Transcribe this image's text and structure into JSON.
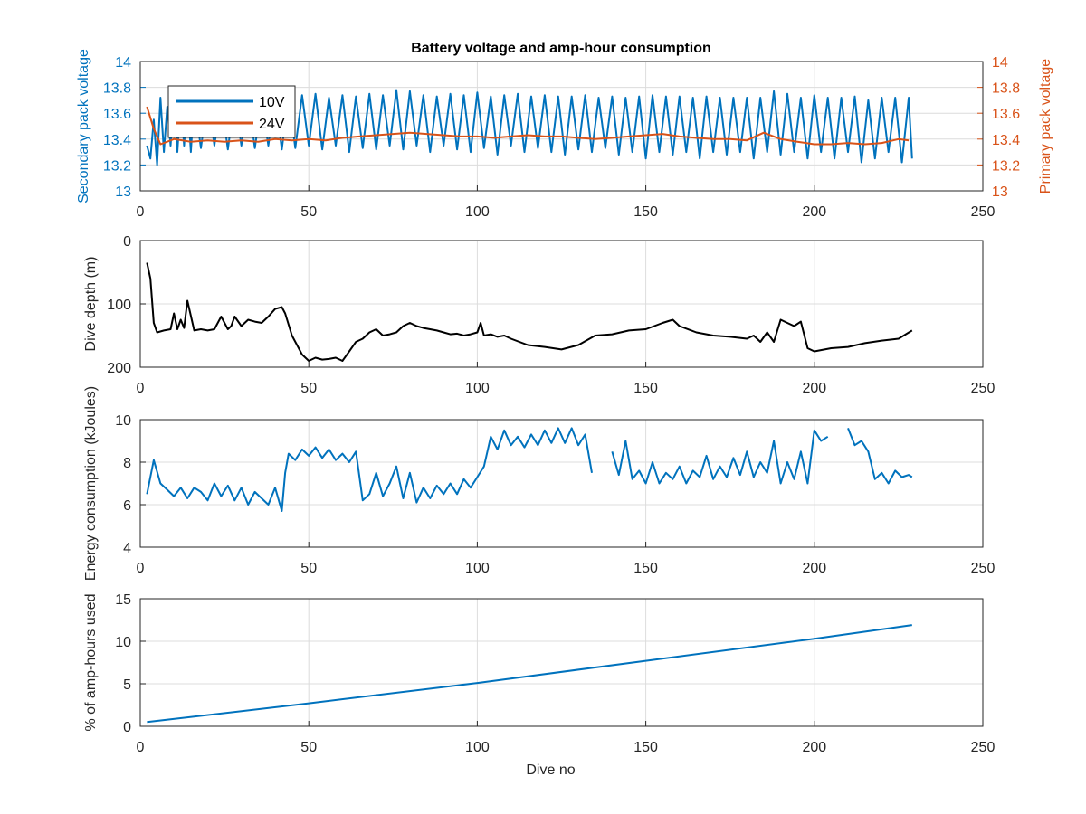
{
  "figure": {
    "title": "Battery voltage and amp-hour consumption"
  },
  "colors": {
    "series_10v": "#0072bd",
    "series_24v": "#d95319",
    "black": "#000000",
    "blue": "#0072bd"
  },
  "chart_data": [
    {
      "id": "voltage",
      "type": "line",
      "title": "Battery voltage and amp-hour consumption",
      "xlabel": "",
      "ylabel": "Secondary pack voltage",
      "ylabel_right": "Primary pack voltage",
      "xlim": [
        0,
        250
      ],
      "ylim": [
        13,
        14
      ],
      "ylim_right": [
        13,
        14
      ],
      "x_ticks": [
        "0",
        "50",
        "100",
        "150",
        "200",
        "250"
      ],
      "y_ticks": [
        "13",
        "13.2",
        "13.4",
        "13.6",
        "13.8",
        "14"
      ],
      "y_ticks_right": [
        "13",
        "13.2",
        "13.4",
        "13.6",
        "13.8",
        "14"
      ],
      "grid": true,
      "legend_position": "top-left",
      "series": [
        {
          "name": "10V",
          "color": "#0072bd",
          "axis": "left",
          "x": [
            2,
            3,
            4,
            5,
            6,
            7,
            8,
            9,
            10,
            11,
            12,
            13,
            14,
            15,
            16,
            18,
            20,
            22,
            24,
            26,
            28,
            30,
            32,
            34,
            36,
            38,
            40,
            42,
            44,
            46,
            48,
            50,
            52,
            54,
            56,
            58,
            60,
            62,
            64,
            66,
            68,
            70,
            72,
            74,
            76,
            78,
            80,
            82,
            84,
            86,
            88,
            90,
            92,
            94,
            96,
            98,
            100,
            102,
            104,
            106,
            108,
            110,
            112,
            114,
            116,
            118,
            120,
            122,
            124,
            126,
            128,
            130,
            132,
            134,
            136,
            138,
            140,
            142,
            144,
            146,
            148,
            150,
            152,
            154,
            156,
            158,
            160,
            162,
            164,
            166,
            168,
            170,
            172,
            174,
            176,
            178,
            180,
            182,
            184,
            186,
            188,
            190,
            192,
            194,
            196,
            198,
            200,
            202,
            204,
            206,
            208,
            210,
            212,
            214,
            216,
            218,
            220,
            222,
            224,
            226,
            228,
            229
          ],
          "values": [
            13.35,
            13.25,
            13.55,
            13.2,
            13.72,
            13.3,
            13.65,
            13.35,
            13.72,
            13.3,
            13.7,
            13.35,
            13.72,
            13.3,
            13.72,
            13.33,
            13.72,
            13.35,
            13.7,
            13.32,
            13.72,
            13.35,
            13.72,
            13.33,
            13.7,
            13.35,
            13.72,
            13.32,
            13.73,
            13.33,
            13.74,
            13.35,
            13.75,
            13.32,
            13.72,
            13.35,
            13.74,
            13.3,
            13.73,
            13.33,
            13.75,
            13.32,
            13.74,
            13.35,
            13.78,
            13.32,
            13.77,
            13.35,
            13.74,
            13.3,
            13.73,
            13.35,
            13.75,
            13.32,
            13.74,
            13.3,
            13.76,
            13.33,
            13.73,
            13.28,
            13.74,
            13.35,
            13.75,
            13.3,
            13.73,
            13.33,
            13.74,
            13.3,
            13.73,
            13.28,
            13.73,
            13.32,
            13.74,
            13.3,
            13.72,
            13.33,
            13.73,
            13.28,
            13.72,
            13.3,
            13.73,
            13.25,
            13.74,
            13.3,
            13.73,
            13.28,
            13.73,
            13.3,
            13.72,
            13.25,
            13.73,
            13.3,
            13.72,
            13.28,
            13.72,
            13.3,
            13.72,
            13.25,
            13.72,
            13.3,
            13.77,
            13.28,
            13.75,
            13.3,
            13.72,
            13.25,
            13.74,
            13.3,
            13.72,
            13.25,
            13.72,
            13.3,
            13.73,
            13.22,
            13.7,
            13.25,
            13.72,
            13.3,
            13.72,
            13.22,
            13.72,
            13.25
          ]
        },
        {
          "name": "24V",
          "color": "#d95319",
          "axis": "right",
          "x": [
            2,
            4,
            6,
            8,
            10,
            15,
            20,
            25,
            30,
            35,
            40,
            45,
            50,
            55,
            60,
            65,
            70,
            75,
            80,
            85,
            90,
            95,
            100,
            105,
            110,
            115,
            120,
            125,
            130,
            135,
            140,
            145,
            150,
            155,
            160,
            165,
            170,
            175,
            180,
            185,
            190,
            195,
            200,
            205,
            210,
            215,
            220,
            225,
            228
          ],
          "values": [
            13.65,
            13.48,
            13.36,
            13.38,
            13.4,
            13.38,
            13.39,
            13.38,
            13.39,
            13.38,
            13.4,
            13.39,
            13.4,
            13.39,
            13.41,
            13.42,
            13.43,
            13.44,
            13.45,
            13.44,
            13.43,
            13.42,
            13.42,
            13.41,
            13.42,
            13.43,
            13.42,
            13.42,
            13.41,
            13.4,
            13.41,
            13.42,
            13.43,
            13.44,
            13.42,
            13.41,
            13.4,
            13.4,
            13.39,
            13.45,
            13.4,
            13.38,
            13.36,
            13.36,
            13.37,
            13.36,
            13.37,
            13.4,
            13.39
          ]
        }
      ]
    },
    {
      "id": "depth",
      "type": "line",
      "xlabel": "",
      "ylabel": "Dive depth (m)",
      "xlim": [
        0,
        250
      ],
      "ylim": [
        200,
        0
      ],
      "y_reversed": true,
      "x_ticks": [
        "0",
        "50",
        "100",
        "150",
        "200",
        "250"
      ],
      "y_ticks": [
        "0",
        "100",
        "200"
      ],
      "grid": true,
      "series": [
        {
          "color": "#000000",
          "x": [
            2,
            3,
            4,
            5,
            7,
            9,
            10,
            11,
            12,
            13,
            14,
            16,
            18,
            20,
            22,
            24,
            26,
            27,
            28,
            30,
            32,
            34,
            36,
            38,
            40,
            42,
            43,
            45,
            48,
            50,
            52,
            54,
            56,
            58,
            60,
            62,
            64,
            66,
            68,
            70,
            72,
            74,
            76,
            78,
            80,
            82,
            84,
            86,
            88,
            90,
            92,
            94,
            96,
            98,
            100,
            101,
            102,
            104,
            106,
            108,
            110,
            115,
            120,
            125,
            130,
            135,
            140,
            145,
            150,
            155,
            158,
            160,
            165,
            170,
            175,
            180,
            182,
            184,
            186,
            188,
            190,
            192,
            194,
            196,
            198,
            200,
            205,
            210,
            215,
            220,
            225,
            229
          ],
          "values": [
            35,
            60,
            130,
            145,
            142,
            140,
            115,
            140,
            125,
            138,
            95,
            142,
            140,
            142,
            140,
            120,
            140,
            135,
            120,
            135,
            125,
            128,
            130,
            120,
            108,
            105,
            115,
            150,
            180,
            190,
            185,
            188,
            187,
            185,
            190,
            175,
            160,
            155,
            145,
            140,
            150,
            148,
            145,
            135,
            130,
            135,
            138,
            140,
            142,
            145,
            148,
            147,
            150,
            148,
            145,
            130,
            150,
            148,
            152,
            150,
            155,
            165,
            168,
            172,
            165,
            150,
            148,
            142,
            140,
            130,
            125,
            135,
            145,
            150,
            152,
            155,
            150,
            160,
            145,
            160,
            125,
            130,
            135,
            128,
            170,
            175,
            170,
            168,
            162,
            158,
            155,
            142
          ]
        }
      ]
    },
    {
      "id": "energy",
      "type": "line",
      "xlabel": "",
      "ylabel": "Energy consumption (kJoules)",
      "xlim": [
        0,
        250
      ],
      "ylim": [
        4,
        10
      ],
      "x_ticks": [
        "0",
        "50",
        "100",
        "150",
        "200",
        "250"
      ],
      "y_ticks": [
        "4",
        "6",
        "8",
        "10"
      ],
      "grid": true,
      "series": [
        {
          "color": "#0072bd",
          "x": [
            2,
            4,
            6,
            8,
            10,
            12,
            14,
            16,
            18,
            20,
            22,
            24,
            26,
            28,
            30,
            32,
            34,
            36,
            38,
            40,
            42,
            43,
            44,
            46,
            48,
            50,
            52,
            54,
            56,
            58,
            60,
            62,
            64,
            66,
            68,
            70,
            72,
            74,
            76,
            78,
            80,
            82,
            84,
            86,
            88,
            90,
            92,
            94,
            96,
            98,
            100,
            102,
            104,
            106,
            108,
            110,
            112,
            114,
            116,
            118,
            120,
            122,
            124,
            126,
            128,
            130,
            132,
            134
          ],
          "values": [
            6.5,
            8.1,
            7.0,
            6.7,
            6.4,
            6.8,
            6.3,
            6.8,
            6.6,
            6.2,
            7.0,
            6.4,
            6.9,
            6.2,
            6.8,
            6.0,
            6.6,
            6.3,
            6.0,
            6.8,
            5.7,
            7.5,
            8.4,
            8.1,
            8.6,
            8.3,
            8.7,
            8.2,
            8.6,
            8.1,
            8.4,
            8.0,
            8.5,
            6.2,
            6.5,
            7.5,
            6.4,
            7.0,
            7.8,
            6.3,
            7.5,
            6.1,
            6.8,
            6.3,
            6.9,
            6.5,
            7.0,
            6.5,
            7.2,
            6.8,
            7.3,
            7.8,
            9.2,
            8.6,
            9.5,
            8.8,
            9.2,
            8.7,
            9.3,
            8.8,
            9.5,
            8.9,
            9.6,
            8.9,
            9.6,
            8.8,
            9.3,
            7.5
          ]
        },
        {
          "color": "#0072bd",
          "x": [
            140,
            142,
            144,
            146,
            148,
            150,
            152,
            154,
            156,
            158,
            160,
            162,
            164,
            166,
            168,
            170,
            172,
            174,
            176,
            178,
            180,
            182,
            184,
            186,
            188,
            190,
            192,
            194,
            196,
            198,
            200,
            202,
            204
          ],
          "values": [
            8.5,
            7.4,
            9.0,
            7.2,
            7.6,
            7.0,
            8.0,
            7.0,
            7.5,
            7.2,
            7.8,
            7.0,
            7.6,
            7.3,
            8.3,
            7.2,
            7.8,
            7.3,
            8.2,
            7.4,
            8.5,
            7.3,
            8.0,
            7.5,
            9.0,
            7.0,
            8.0,
            7.2,
            8.5,
            7.0,
            9.5,
            9.0,
            9.2
          ]
        },
        {
          "color": "#0072bd",
          "x": [
            210,
            212,
            214,
            216,
            218,
            220,
            222,
            224,
            226,
            228,
            229
          ],
          "values": [
            9.6,
            8.8,
            9.0,
            8.5,
            7.2,
            7.5,
            7.0,
            7.6,
            7.3,
            7.4,
            7.3
          ]
        }
      ]
    },
    {
      "id": "amphours",
      "type": "line",
      "xlabel": "Dive no",
      "ylabel": "% of amp-hours used",
      "xlim": [
        0,
        250
      ],
      "ylim": [
        0,
        15
      ],
      "x_ticks": [
        "0",
        "50",
        "100",
        "150",
        "200",
        "250"
      ],
      "y_ticks": [
        "0",
        "5",
        "10",
        "15"
      ],
      "grid": true,
      "series": [
        {
          "color": "#0072bd",
          "x": [
            2,
            50,
            100,
            150,
            200,
            229
          ],
          "values": [
            0.5,
            2.7,
            5.1,
            7.7,
            10.3,
            11.9
          ]
        }
      ]
    }
  ]
}
